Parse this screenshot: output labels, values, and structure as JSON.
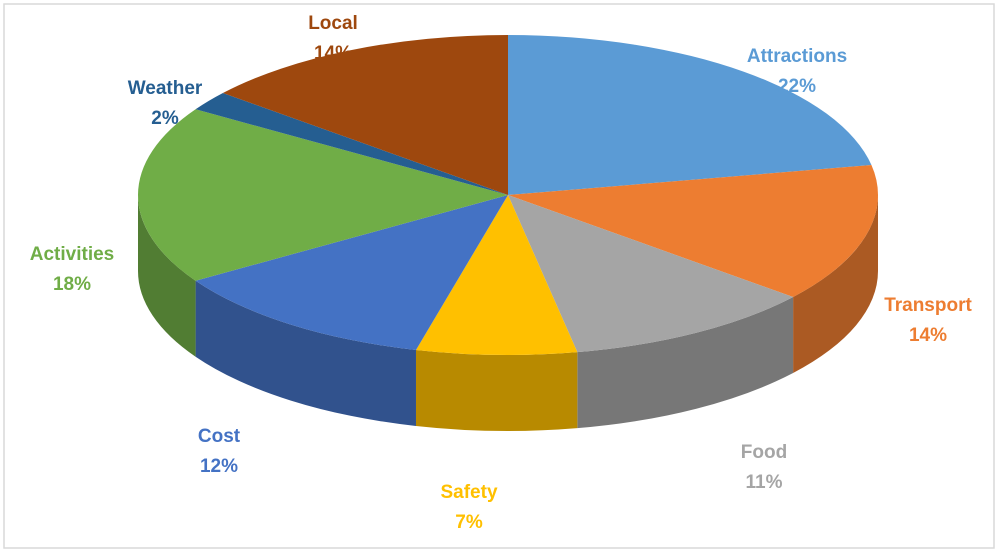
{
  "chart_data": {
    "type": "pie",
    "categories": [
      "Attractions",
      "Transport",
      "Food",
      "Safety",
      "Cost",
      "Activities",
      "Weather",
      "Local"
    ],
    "values": [
      22,
      14,
      11,
      7,
      12,
      18,
      2,
      14
    ],
    "value_labels": [
      "22%",
      "14%",
      "11%",
      "7%",
      "12%",
      "18%",
      "2%",
      "14%"
    ],
    "colors": [
      "#5b9bd5",
      "#ed7d31",
      "#a5a5a5",
      "#ffc000",
      "#4472c4",
      "#70ad47",
      "#255e91",
      "#9e480e"
    ]
  }
}
